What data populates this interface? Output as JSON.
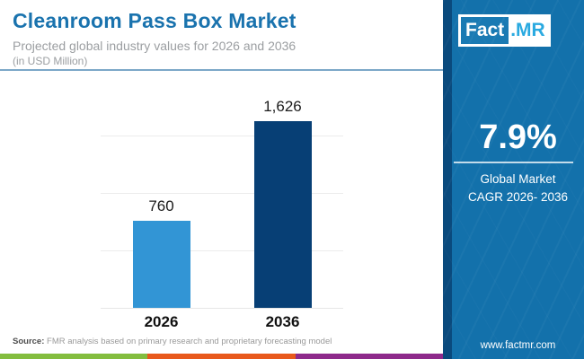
{
  "header": {
    "title": "Cleanroom Pass Box Market",
    "subtitle": "Projected global industry values for 2026 and 2036",
    "unit_note": "(in USD Million)"
  },
  "chart_data": {
    "type": "bar",
    "title": "Cleanroom Pass Box Market",
    "subtitle": "Projected global industry values for 2026 and 2036 (in USD Million)",
    "categories": [
      "2026",
      "2036"
    ],
    "values": [
      760,
      1626
    ],
    "value_labels": [
      "760",
      "1,626"
    ],
    "bar_colors": [
      "#3295d5",
      "#073f75"
    ],
    "xlabel": "",
    "ylabel": "USD Million",
    "ylim": [
      0,
      2000
    ],
    "gridlines": [
      500,
      1000,
      1500
    ],
    "grid": true,
    "legend": false
  },
  "source": {
    "label": "Source:",
    "text": " FMR analysis based on primary research and proprietary forecasting model"
  },
  "footer_strip_colors": [
    "#83bd3f",
    "#e8591c",
    "#8e2a8b"
  ],
  "panel": {
    "logo": {
      "part1": "Fact",
      "part2": ".MR"
    },
    "stat_value": "7.9%",
    "stat_label_line1": "Global Market",
    "stat_label_line2": "CAGR 2026- 2036",
    "website": "www.factmr.com",
    "colors": {
      "background": "#1371ab",
      "edge": "#0a4a7d",
      "logo_blue": "#1a7ab3",
      "logo_mr_text": "#29a9e0"
    }
  }
}
